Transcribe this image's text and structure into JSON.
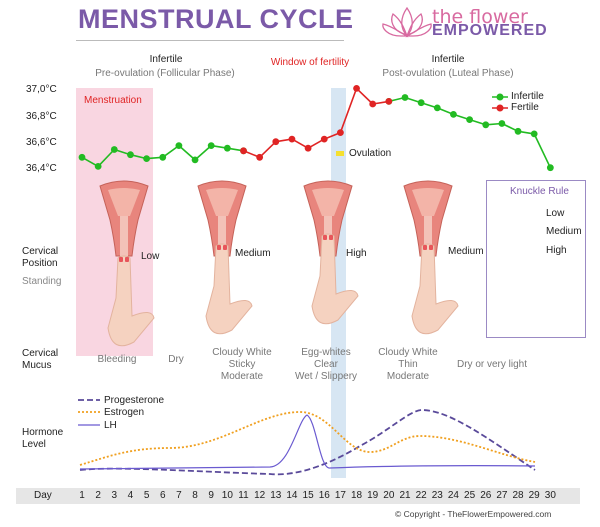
{
  "header": {
    "title": "MENSTRUAL CYCLE",
    "brand_line1": "the flower",
    "brand_line2": "EMPOWERED"
  },
  "phases": {
    "infertile_1": "Infertile",
    "pre_ovulation": "Pre-ovulation (Follicular Phase)",
    "window": "Window of fertility",
    "infertile_2": "Infertile",
    "post_ovulation": "Post-ovulation (Luteal Phase)"
  },
  "chart": {
    "menstruation_label": "Menstruation",
    "ovulation_label": "Ovulation",
    "y_ticks": [
      "37,0°C",
      "36,8°C",
      "36,6°C",
      "36,4°C"
    ],
    "legend_infertile": "Infertile",
    "legend_fertile": "Fertile",
    "colors": {
      "infertile": "#22bb22",
      "fertile": "#e02424",
      "menstruation": "#f9d6e1",
      "window": "#d7e6f3"
    }
  },
  "chart_data": {
    "type": "line",
    "x": [
      1,
      2,
      3,
      4,
      5,
      6,
      7,
      8,
      9,
      10,
      11,
      12,
      13,
      14,
      15,
      16,
      17,
      18,
      19,
      20,
      21,
      22,
      23,
      24,
      25,
      26,
      27,
      28,
      29,
      30
    ],
    "ylim": [
      36.36,
      37.02
    ],
    "y_unit": "°C",
    "series": [
      {
        "name": "Infertile",
        "values": [
          36.49,
          36.42,
          36.55,
          36.51,
          36.48,
          36.49,
          36.58,
          36.47,
          36.58,
          36.56,
          36.54,
          null,
          null,
          null,
          null,
          null,
          null,
          null,
          null,
          36.92,
          36.95,
          36.91,
          36.87,
          36.82,
          36.78,
          36.74,
          36.75,
          36.69,
          36.67,
          36.41
        ]
      },
      {
        "name": "Fertile",
        "values": [
          null,
          null,
          null,
          null,
          null,
          null,
          null,
          null,
          null,
          null,
          36.54,
          36.49,
          36.61,
          36.63,
          36.56,
          36.63,
          36.68,
          37.02,
          36.9,
          36.92,
          null,
          null,
          null,
          null,
          null,
          null,
          null,
          null,
          null,
          null
        ]
      }
    ]
  },
  "cervix": {
    "row_label_1": "Cervical",
    "row_label_2": "Position",
    "row_label_3": "Standing",
    "positions": [
      "Low",
      "Medium",
      "High",
      "Medium"
    ]
  },
  "knuckle_rule": {
    "title": "Knuckle Rule",
    "levels": [
      "Low",
      "Medium",
      "High"
    ]
  },
  "mucus": {
    "row_label_1": "Cervical",
    "row_label_2": "Mucus",
    "items": [
      {
        "lines": [
          "Bleeding"
        ]
      },
      {
        "lines": [
          "Dry"
        ]
      },
      {
        "lines": [
          "Cloudy White",
          "Sticky",
          "Moderate"
        ]
      },
      {
        "lines": [
          "Egg-whites",
          "Clear",
          "Wet / Slippery"
        ]
      },
      {
        "lines": [
          "Cloudy White",
          "Thin",
          "Moderate"
        ]
      },
      {
        "lines": [
          "Dry or very light"
        ]
      }
    ]
  },
  "hormones": {
    "row_label_1": "Hormone",
    "row_label_2": "Level",
    "legend": [
      "Progesterone",
      "Estrogen",
      "LH"
    ],
    "colors": {
      "progesterone": "#5a4a9a",
      "estrogen": "#f0a020",
      "lh": "#6a5ad0"
    }
  },
  "days": {
    "label": "Day",
    "values": [
      "1",
      "2",
      "3",
      "4",
      "5",
      "6",
      "7",
      "8",
      "9",
      "10",
      "11",
      "12",
      "13",
      "14",
      "15",
      "16",
      "17",
      "18",
      "19",
      "20",
      "21",
      "22",
      "23",
      "24",
      "25",
      "26",
      "27",
      "28",
      "29",
      "30"
    ]
  },
  "footer": "© Copyright - TheFlowerEmpowered.com"
}
